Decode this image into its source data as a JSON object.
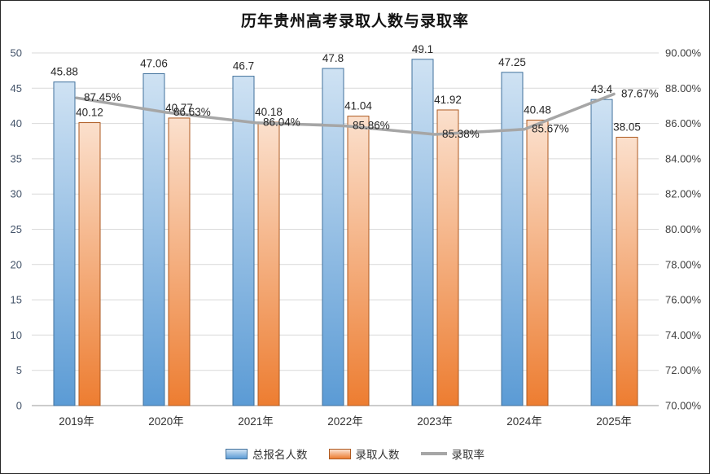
{
  "frame": {
    "background": "#ffffff",
    "border_color": "#262626"
  },
  "chart_data": {
    "type": "bar",
    "subtype": "grouped-bar-with-line",
    "title": "历年贵州高考录取人数与录取率",
    "categories": [
      "2019年",
      "2020年",
      "2021年",
      "2022年",
      "2023年",
      "2024年",
      "2025年"
    ],
    "series": [
      {
        "name": "总报名人数",
        "type": "bar",
        "axis": "left",
        "color_top": "#cfe2f3",
        "color_bottom": "#5b9bd5",
        "border": "#41719c",
        "values": [
          45.88,
          47.06,
          46.7,
          47.8,
          49.1,
          47.25,
          43.4
        ],
        "labels": [
          "45.88",
          "47.06",
          "46.7",
          "47.8",
          "49.1",
          "47.25",
          "43.4"
        ]
      },
      {
        "name": "录取人数",
        "type": "bar",
        "axis": "left",
        "color_top": "#fbe0cd",
        "color_bottom": "#ed7d31",
        "border": "#ae5a21",
        "values": [
          40.12,
          40.77,
          40.18,
          41.04,
          41.92,
          40.48,
          38.05
        ],
        "labels": [
          "40.12",
          "40.77",
          "40.18",
          "41.04",
          "41.92",
          "40.48",
          "38.05"
        ]
      },
      {
        "name": "录取率",
        "type": "line",
        "axis": "right",
        "color": "#a6a6a6",
        "values": [
          87.45,
          86.63,
          86.04,
          85.86,
          85.38,
          85.67,
          87.67
        ],
        "labels": [
          "87.45%",
          "86.63%",
          "86.04%",
          "85.86%",
          "85.38%",
          "85.67%",
          "87.67%"
        ]
      }
    ],
    "left_axis": {
      "min": 0,
      "max": 50,
      "ticks": [
        "0",
        "5",
        "10",
        "15",
        "20",
        "25",
        "30",
        "35",
        "40",
        "45",
        "50"
      ],
      "tick_values": [
        0,
        5,
        10,
        15,
        20,
        25,
        30,
        35,
        40,
        45,
        50
      ],
      "label_color": "#44546a"
    },
    "right_axis": {
      "min": 70,
      "max": 90,
      "ticks": [
        "70.00%",
        "72.00%",
        "74.00%",
        "76.00%",
        "78.00%",
        "80.00%",
        "82.00%",
        "84.00%",
        "86.00%",
        "88.00%",
        "90.00%"
      ],
      "tick_values": [
        70,
        72,
        74,
        76,
        78,
        80,
        82,
        84,
        86,
        88,
        90
      ],
      "label_color": "#404040"
    },
    "grid": true,
    "gridline_color": "#d9d9d9",
    "axis_line_color": "#9a9a9a",
    "data_label_color": "#262626",
    "legend_position": "bottom"
  }
}
